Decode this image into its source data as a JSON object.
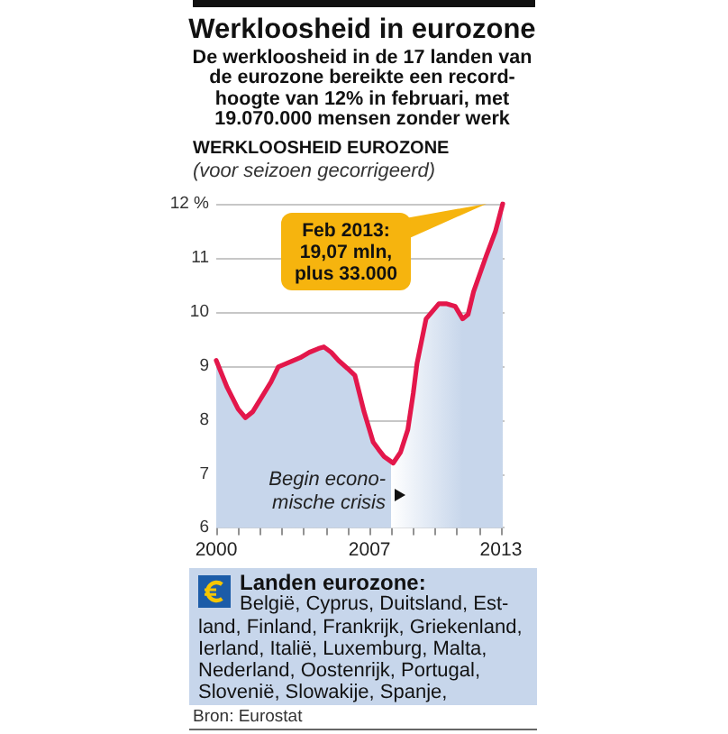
{
  "chart_data": {
    "type": "area",
    "title": "Werkloosheid in eurozone",
    "subtitle": "De werkloosheid in de 17 landen van\nde eurozone bereikte een record-\nhoogte van 12% in februari, met\n19.070.000 mensen zonder werk",
    "ylabel": "WERKLOOSHEID EUROZONE",
    "x": [
      "2000-01",
      "2000-07",
      "2001-01",
      "2001-05",
      "2001-09",
      "2002-03",
      "2002-07",
      "2002-11",
      "2003-04",
      "2003-11",
      "2004-04",
      "2004-09",
      "2004-12",
      "2005-04",
      "2005-08",
      "2006-01",
      "2006-05",
      "2006-10",
      "2007-03",
      "2007-06",
      "2007-09",
      "2008-02",
      "2008-06",
      "2008-10",
      "2009-01",
      "2009-03",
      "2009-08",
      "2010-03",
      "2010-07",
      "2010-12",
      "2011-04",
      "2011-07",
      "2011-10",
      "2012-05",
      "2012-10",
      "2013-02"
    ],
    "values": [
      9.1,
      8.6,
      8.2,
      8.04,
      8.15,
      8.48,
      8.7,
      8.98,
      9.05,
      9.15,
      9.25,
      9.32,
      9.35,
      9.25,
      9.1,
      8.95,
      8.82,
      8.15,
      7.59,
      7.45,
      7.32,
      7.2,
      7.4,
      7.82,
      8.5,
      9.04,
      9.87,
      10.15,
      10.15,
      10.1,
      9.87,
      9.95,
      10.37,
      11.04,
      11.49,
      12.0
    ],
    "color": "#e3174b",
    "xlim": [
      "2000-01",
      "2013-03"
    ],
    "xticks": [
      "2000",
      {
        "value": "2001",
        "label": null
      },
      {
        "value": "2002",
        "label": null
      },
      {
        "value": "2003",
        "label": null
      },
      {
        "value": "2004",
        "label": null
      },
      {
        "value": "2005",
        "label": null
      },
      {
        "value": "2006",
        "label": null
      },
      "2007",
      {
        "value": "2008",
        "label": null
      },
      {
        "value": "2009",
        "label": null
      },
      {
        "value": "2010",
        "label": null
      },
      {
        "value": "2011",
        "label": null
      },
      {
        "value": "2012",
        "label": null
      },
      "2013"
    ],
    "ylim": [
      6,
      12
    ],
    "yticks": [
      6,
      7,
      8,
      9,
      10,
      11,
      {
        "value": 12,
        "label": "12 %"
      }
    ],
    "grid": "y",
    "annotations": [
      "(voor seizoen gecorrigeerd)",
      "Feb 2013:\n19,07 mln,\nplus 33.000",
      "Begin econo-\nmische crisis",
      "Landen eurozone:",
      "België, Cyprus, Duitsland, Est-\nland, Finland, Frankrijk, Griekenland,\nIerland, Italië, Luxemburg, Malta,\nNederland, Oostenrijk, Portugal,\nSlovenië, Slowakije, Spanje,",
      "Bron: Eurostat"
    ]
  }
}
